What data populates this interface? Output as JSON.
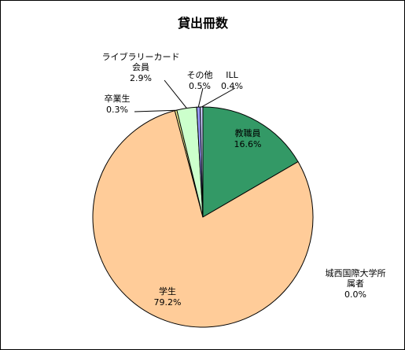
{
  "chart_data": {
    "type": "pie",
    "title": "貸出冊数",
    "start_angle_deg": 0,
    "direction": "clockwise",
    "slices": [
      {
        "name": "教職員",
        "value": 16.6,
        "value_label": "16.6%",
        "color": "#339966"
      },
      {
        "name": "城西国際大学所属者",
        "name_lines": [
          "城西国際大学所",
          "属者"
        ],
        "value": 0.0,
        "value_label": "0.0%",
        "color": "#99ccff"
      },
      {
        "name": "学生",
        "value": 79.2,
        "value_label": "79.2%",
        "color": "#ffcc99"
      },
      {
        "name": "卒業生",
        "value": 0.3,
        "value_label": "0.3%",
        "color": "#ffff99"
      },
      {
        "name": "ライブラリーカード会員",
        "name_lines": [
          "ライブラリーカード",
          "会員"
        ],
        "value": 2.9,
        "value_label": "2.9%",
        "color": "#ccffcc"
      },
      {
        "name": "その他",
        "value": 0.5,
        "value_label": "0.5%",
        "color": "#9999ff"
      },
      {
        "name": "ILL",
        "value": 0.4,
        "value_label": "0.4%",
        "color": "#ccccff"
      }
    ]
  }
}
